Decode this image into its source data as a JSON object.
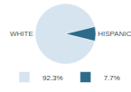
{
  "chart_data": {
    "type": "pie",
    "categories": [
      "WHITE",
      "HISPANIC"
    ],
    "values": [
      92.3,
      7.7
    ],
    "value_labels": [
      "92.3%",
      "7.7%"
    ],
    "colors": [
      "#d6e4f0",
      "#2e6b8a"
    ],
    "legend": "bottom"
  }
}
